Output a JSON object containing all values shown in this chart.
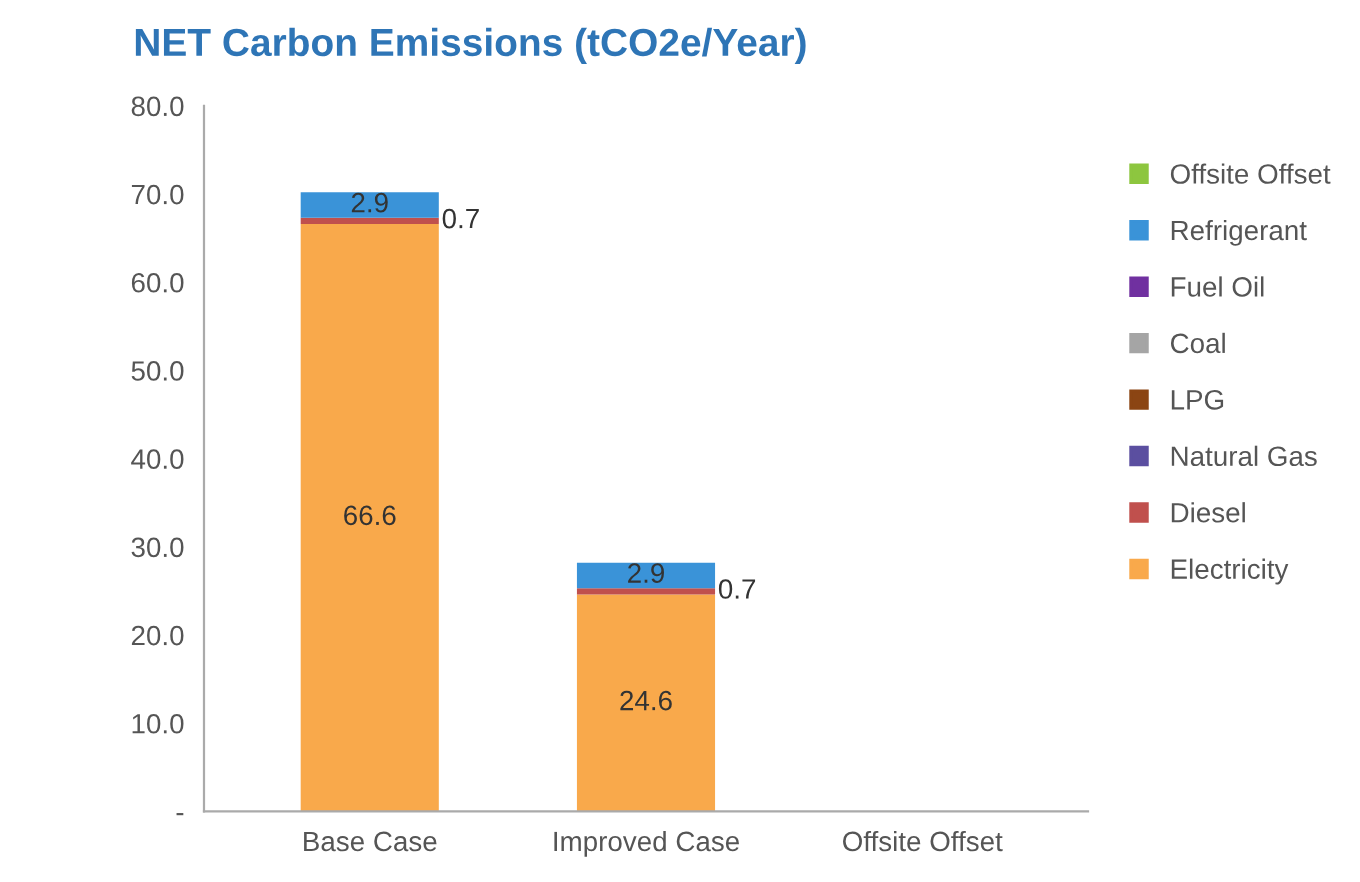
{
  "chart_data": {
    "type": "bar",
    "title": "NET Carbon Emissions (tCO2e/Year)",
    "categories": [
      "Base Case",
      "Improved Case",
      "Offsite Offset"
    ],
    "stacked": true,
    "series": [
      {
        "name": "Electricity",
        "color": "#f9a94b",
        "values": [
          66.6,
          24.6,
          null
        ],
        "value_labels": [
          "66.6",
          "24.6",
          null
        ]
      },
      {
        "name": "Diesel",
        "color": "#c0504d",
        "values": [
          0.7,
          0.7,
          null
        ],
        "value_labels": [
          "0.7",
          "0.7",
          null
        ]
      },
      {
        "name": "Natural Gas",
        "color": "#5b4fa0",
        "values": [
          null,
          null,
          null
        ]
      },
      {
        "name": "LPG",
        "color": "#8b4513",
        "values": [
          null,
          null,
          null
        ]
      },
      {
        "name": "Coal",
        "color": "#a5a5a5",
        "values": [
          null,
          null,
          null
        ]
      },
      {
        "name": "Fuel Oil",
        "color": "#7030a0",
        "values": [
          null,
          null,
          null
        ]
      },
      {
        "name": "Refrigerant",
        "color": "#3a93d8",
        "values": [
          2.9,
          2.9,
          null
        ],
        "value_labels": [
          "2.9",
          "2.9",
          null
        ]
      },
      {
        "name": "Offsite Offset",
        "color": "#8dc63f",
        "values": [
          null,
          null,
          null
        ]
      }
    ],
    "ylim": [
      0,
      80
    ],
    "yticks": [
      {
        "value": 0,
        "label": "-"
      },
      {
        "value": 10,
        "label": "10.0"
      },
      {
        "value": 20,
        "label": "20.0"
      },
      {
        "value": 30,
        "label": "30.0"
      },
      {
        "value": 40,
        "label": "40.0"
      },
      {
        "value": 50,
        "label": "50.0"
      },
      {
        "value": 60,
        "label": "60.0"
      },
      {
        "value": 70,
        "label": "70.0"
      },
      {
        "value": 80,
        "label": "80.0"
      }
    ],
    "grid": false,
    "legend": "right"
  }
}
